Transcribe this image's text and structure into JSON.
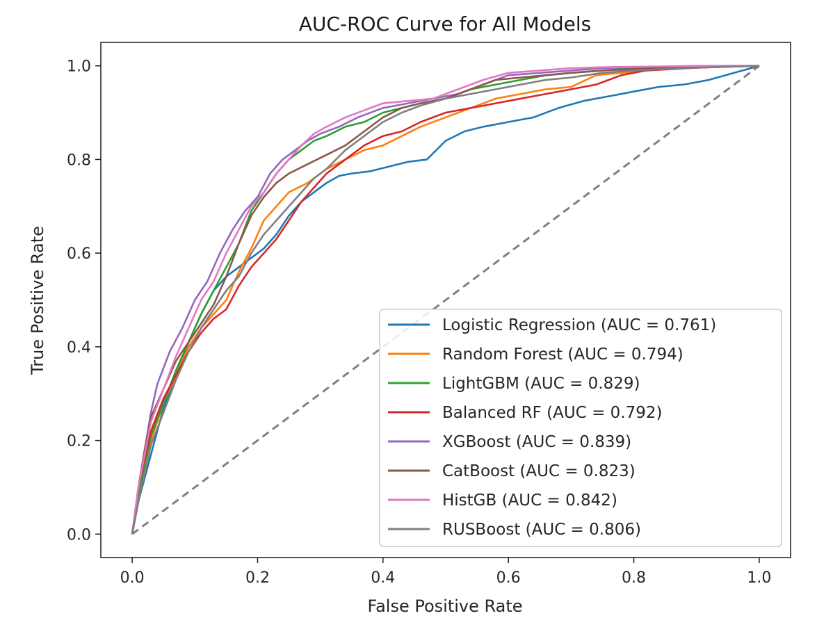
{
  "chart_data": {
    "type": "line",
    "title": "AUC-ROC Curve for All Models",
    "xlabel": "False Positive Rate",
    "ylabel": "True Positive Rate",
    "xlim": [
      -0.05,
      1.05
    ],
    "ylim": [
      -0.05,
      1.05
    ],
    "xticks": [
      0.0,
      0.2,
      0.4,
      0.6,
      0.8,
      1.0
    ],
    "yticks": [
      0.0,
      0.2,
      0.4,
      0.6,
      0.8,
      1.0
    ],
    "xtick_labels": [
      "0.0",
      "0.2",
      "0.4",
      "0.6",
      "0.8",
      "1.0"
    ],
    "ytick_labels": [
      "0.0",
      "0.2",
      "0.4",
      "0.6",
      "0.8",
      "1.0"
    ],
    "grid": false,
    "legend_position": "lower-right",
    "series": [
      {
        "name": "Logistic Regression (AUC = 0.761)",
        "color": "#1f77b4",
        "x": [
          0,
          0.01,
          0.02,
          0.03,
          0.04,
          0.05,
          0.07,
          0.09,
          0.11,
          0.13,
          0.15,
          0.17,
          0.19,
          0.21,
          0.23,
          0.25,
          0.27,
          0.29,
          0.31,
          0.33,
          0.35,
          0.38,
          0.41,
          0.44,
          0.47,
          0.5,
          0.53,
          0.56,
          0.6,
          0.64,
          0.68,
          0.72,
          0.76,
          0.8,
          0.84,
          0.88,
          0.92,
          0.96,
          1.0
        ],
        "y": [
          0,
          0.07,
          0.12,
          0.17,
          0.22,
          0.27,
          0.34,
          0.41,
          0.47,
          0.52,
          0.55,
          0.57,
          0.59,
          0.61,
          0.64,
          0.68,
          0.71,
          0.73,
          0.75,
          0.765,
          0.77,
          0.775,
          0.785,
          0.795,
          0.8,
          0.84,
          0.86,
          0.87,
          0.88,
          0.89,
          0.91,
          0.925,
          0.935,
          0.945,
          0.955,
          0.96,
          0.97,
          0.985,
          1.0
        ]
      },
      {
        "name": "Random Forest (AUC = 0.794)",
        "color": "#ff7f0e",
        "x": [
          0,
          0.01,
          0.02,
          0.03,
          0.05,
          0.07,
          0.09,
          0.11,
          0.13,
          0.15,
          0.17,
          0.19,
          0.21,
          0.23,
          0.25,
          0.28,
          0.31,
          0.34,
          0.37,
          0.4,
          0.43,
          0.46,
          0.5,
          0.54,
          0.58,
          0.62,
          0.66,
          0.7,
          0.74,
          0.78,
          0.82,
          0.86,
          0.9,
          0.95,
          1.0
        ],
        "y": [
          0,
          0.08,
          0.14,
          0.2,
          0.28,
          0.34,
          0.4,
          0.44,
          0.47,
          0.5,
          0.56,
          0.61,
          0.67,
          0.7,
          0.73,
          0.75,
          0.78,
          0.8,
          0.82,
          0.83,
          0.85,
          0.87,
          0.89,
          0.91,
          0.93,
          0.94,
          0.95,
          0.955,
          0.98,
          0.985,
          0.99,
          0.993,
          0.996,
          0.998,
          1.0
        ]
      },
      {
        "name": "LightGBM (AUC = 0.829)",
        "color": "#2ca02c",
        "x": [
          0,
          0.01,
          0.02,
          0.03,
          0.05,
          0.07,
          0.09,
          0.11,
          0.13,
          0.15,
          0.17,
          0.19,
          0.21,
          0.23,
          0.25,
          0.27,
          0.29,
          0.31,
          0.34,
          0.37,
          0.4,
          0.43,
          0.46,
          0.5,
          0.54,
          0.58,
          0.62,
          0.66,
          0.7,
          0.75,
          0.8,
          0.85,
          0.9,
          0.95,
          1.0
        ],
        "y": [
          0,
          0.08,
          0.15,
          0.21,
          0.28,
          0.35,
          0.41,
          0.47,
          0.52,
          0.57,
          0.62,
          0.69,
          0.73,
          0.77,
          0.8,
          0.82,
          0.84,
          0.85,
          0.87,
          0.88,
          0.9,
          0.91,
          0.92,
          0.93,
          0.95,
          0.96,
          0.97,
          0.98,
          0.985,
          0.99,
          0.995,
          0.997,
          0.998,
          0.999,
          1.0
        ]
      },
      {
        "name": "Balanced RF (AUC = 0.792)",
        "color": "#d62728",
        "x": [
          0,
          0.01,
          0.02,
          0.03,
          0.05,
          0.07,
          0.09,
          0.11,
          0.13,
          0.15,
          0.17,
          0.19,
          0.21,
          0.23,
          0.25,
          0.27,
          0.29,
          0.31,
          0.34,
          0.37,
          0.4,
          0.43,
          0.46,
          0.5,
          0.54,
          0.58,
          0.62,
          0.66,
          0.7,
          0.74,
          0.78,
          0.82,
          0.86,
          0.9,
          0.95,
          1.0
        ],
        "y": [
          0,
          0.1,
          0.16,
          0.22,
          0.29,
          0.34,
          0.39,
          0.43,
          0.46,
          0.48,
          0.53,
          0.57,
          0.6,
          0.63,
          0.67,
          0.71,
          0.74,
          0.77,
          0.8,
          0.83,
          0.85,
          0.86,
          0.88,
          0.9,
          0.91,
          0.92,
          0.93,
          0.94,
          0.95,
          0.96,
          0.98,
          0.99,
          0.993,
          0.996,
          0.998,
          1.0
        ]
      },
      {
        "name": "XGBoost (AUC = 0.839)",
        "color": "#9467bd",
        "x": [
          0,
          0.01,
          0.02,
          0.03,
          0.04,
          0.06,
          0.08,
          0.1,
          0.12,
          0.14,
          0.16,
          0.18,
          0.2,
          0.22,
          0.24,
          0.26,
          0.28,
          0.3,
          0.33,
          0.36,
          0.4,
          0.44,
          0.48,
          0.52,
          0.56,
          0.6,
          0.65,
          0.7,
          0.75,
          0.8,
          0.85,
          0.9,
          0.95,
          1.0
        ],
        "y": [
          0,
          0.1,
          0.18,
          0.26,
          0.32,
          0.39,
          0.44,
          0.5,
          0.54,
          0.6,
          0.65,
          0.69,
          0.72,
          0.77,
          0.8,
          0.82,
          0.84,
          0.855,
          0.87,
          0.89,
          0.91,
          0.92,
          0.93,
          0.94,
          0.96,
          0.98,
          0.985,
          0.99,
          0.995,
          0.997,
          0.998,
          0.999,
          1.0,
          1.0
        ]
      },
      {
        "name": "CatBoost (AUC = 0.823)",
        "color": "#8c564b",
        "x": [
          0,
          0.01,
          0.02,
          0.03,
          0.05,
          0.07,
          0.09,
          0.11,
          0.13,
          0.15,
          0.17,
          0.19,
          0.21,
          0.23,
          0.25,
          0.28,
          0.31,
          0.34,
          0.37,
          0.4,
          0.43,
          0.46,
          0.5,
          0.54,
          0.58,
          0.62,
          0.66,
          0.7,
          0.75,
          0.8,
          0.85,
          0.9,
          0.95,
          1.0
        ],
        "y": [
          0,
          0.1,
          0.18,
          0.25,
          0.31,
          0.37,
          0.41,
          0.45,
          0.49,
          0.55,
          0.62,
          0.68,
          0.72,
          0.75,
          0.77,
          0.79,
          0.81,
          0.83,
          0.86,
          0.89,
          0.91,
          0.92,
          0.93,
          0.95,
          0.97,
          0.975,
          0.98,
          0.985,
          0.99,
          0.993,
          0.996,
          0.998,
          0.999,
          1.0
        ]
      },
      {
        "name": "HistGB (AUC = 0.842)",
        "color": "#e377c2",
        "x": [
          0,
          0.01,
          0.02,
          0.03,
          0.05,
          0.07,
          0.09,
          0.11,
          0.13,
          0.15,
          0.17,
          0.19,
          0.21,
          0.23,
          0.25,
          0.27,
          0.29,
          0.31,
          0.34,
          0.37,
          0.4,
          0.44,
          0.48,
          0.52,
          0.56,
          0.6,
          0.65,
          0.7,
          0.75,
          0.8,
          0.85,
          0.9,
          0.95,
          1.0
        ],
        "y": [
          0,
          0.1,
          0.17,
          0.24,
          0.31,
          0.38,
          0.44,
          0.5,
          0.54,
          0.6,
          0.65,
          0.7,
          0.73,
          0.77,
          0.8,
          0.83,
          0.855,
          0.87,
          0.89,
          0.905,
          0.92,
          0.925,
          0.93,
          0.95,
          0.97,
          0.985,
          0.99,
          0.995,
          0.997,
          0.998,
          0.999,
          1.0,
          1.0,
          1.0
        ]
      },
      {
        "name": "RUSBoost (AUC = 0.806)",
        "color": "#7f7f7f",
        "x": [
          0,
          0.01,
          0.02,
          0.03,
          0.05,
          0.07,
          0.09,
          0.11,
          0.13,
          0.15,
          0.17,
          0.19,
          0.21,
          0.23,
          0.25,
          0.27,
          0.29,
          0.31,
          0.34,
          0.37,
          0.4,
          0.43,
          0.46,
          0.5,
          0.54,
          0.58,
          0.62,
          0.66,
          0.7,
          0.75,
          0.8,
          0.85,
          0.9,
          0.95,
          1.0
        ],
        "y": [
          0,
          0.07,
          0.13,
          0.19,
          0.26,
          0.33,
          0.39,
          0.44,
          0.48,
          0.52,
          0.55,
          0.6,
          0.64,
          0.67,
          0.7,
          0.73,
          0.76,
          0.78,
          0.82,
          0.85,
          0.88,
          0.9,
          0.915,
          0.93,
          0.94,
          0.95,
          0.96,
          0.97,
          0.975,
          0.985,
          0.99,
          0.993,
          0.996,
          0.998,
          1.0
        ]
      }
    ],
    "reference_line": {
      "x": [
        0,
        1
      ],
      "y": [
        0,
        1
      ],
      "color": "#808080",
      "style": "dashed"
    }
  }
}
